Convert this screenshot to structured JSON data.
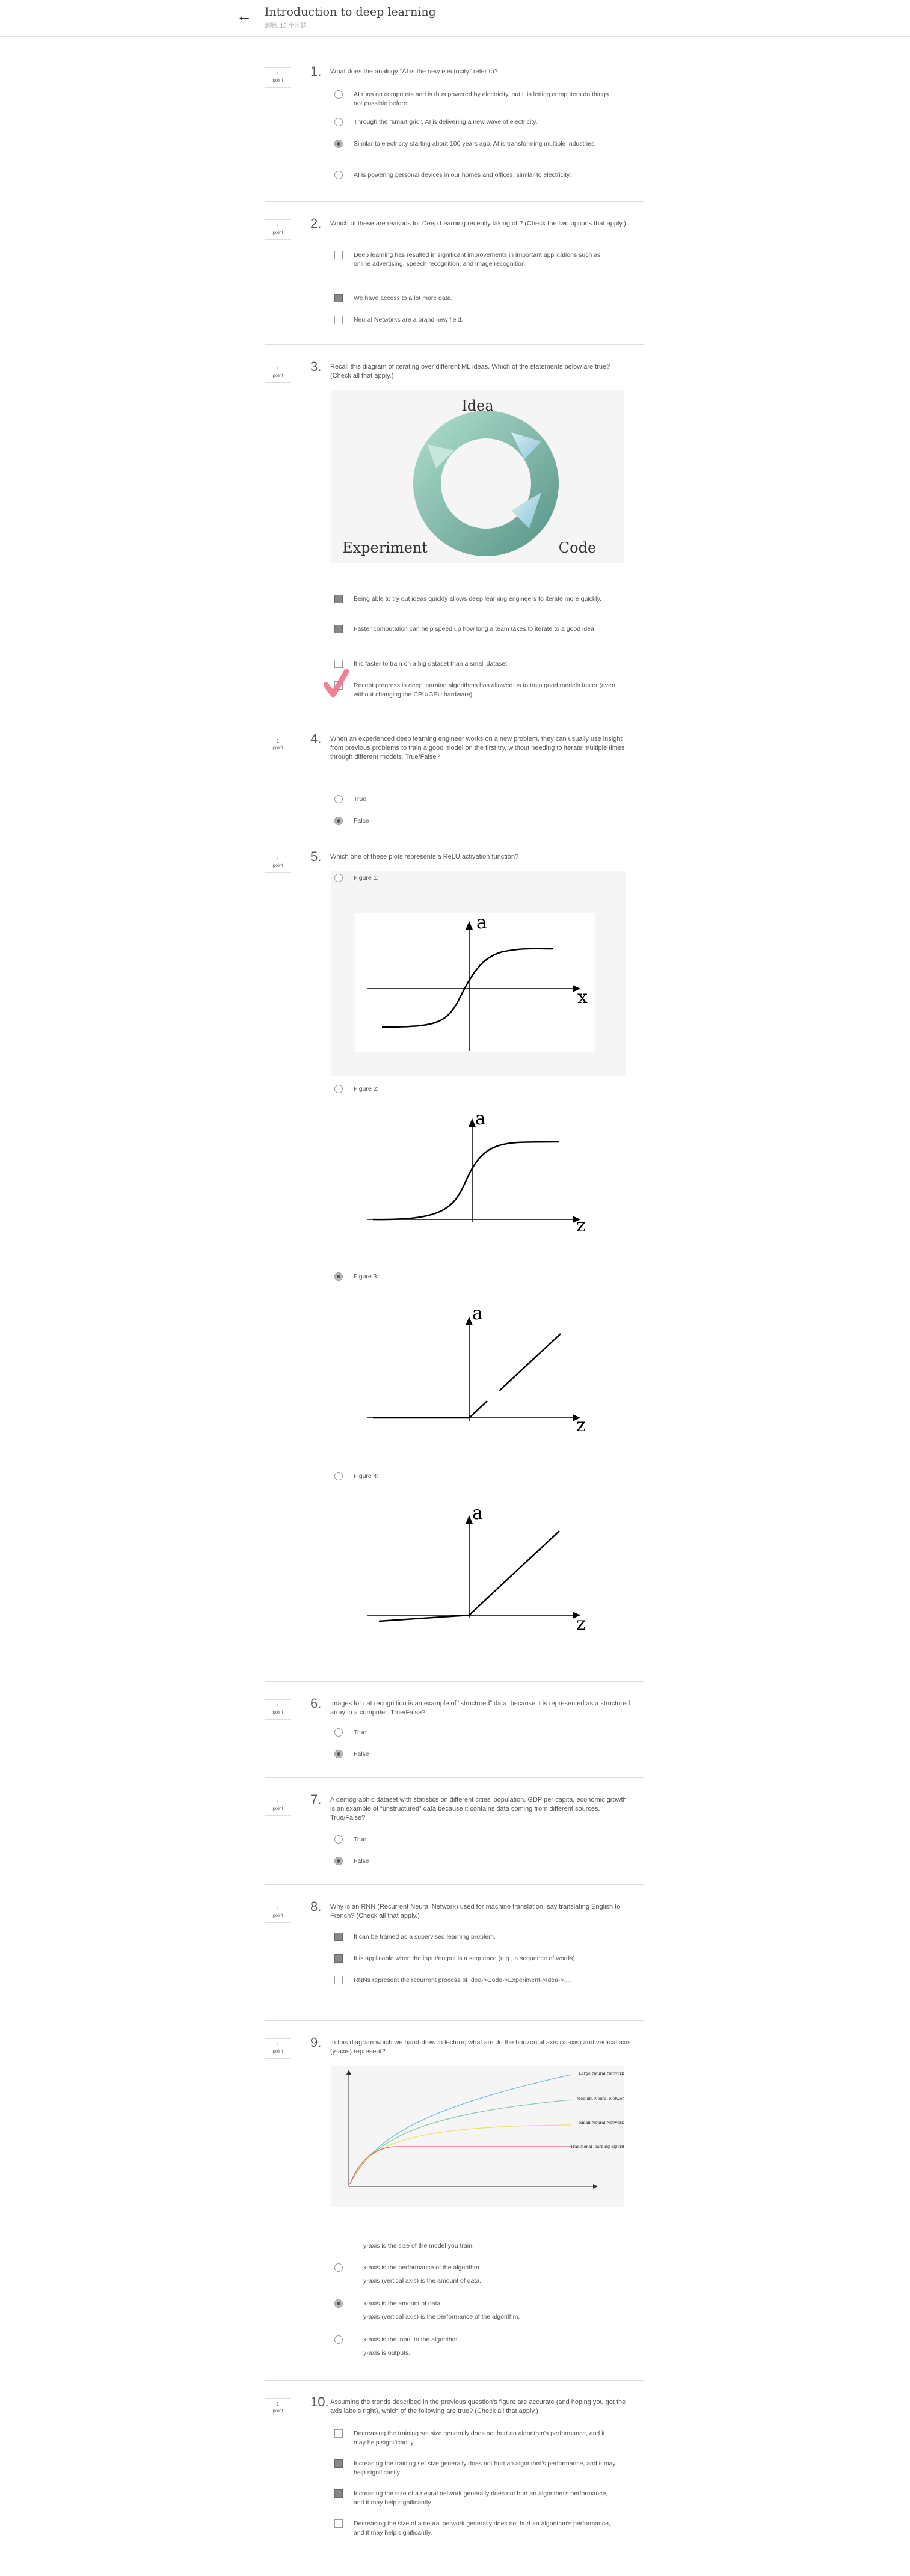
{
  "header": {
    "back_label": "←",
    "title": "Introduction to deep learning",
    "subtitle": "测验, 10 个问题"
  },
  "points_label": [
    "1",
    "point"
  ],
  "questions": [
    {
      "num": "1.",
      "text": "What does the analogy “AI is the new electricity” refer to?",
      "options": [
        "AI runs on computers and is thus powered by electricity, but it is letting computers do things not possible before.",
        "Through the “smart grid”, AI is delivering a new wave of electricity.",
        "Similar to electricity starting about 100 years ago, AI is transforming multiple industries.",
        "AI is powering personal devices in our homes and offices, similar to electricity."
      ]
    },
    {
      "num": "2.",
      "text": "Which of these are reasons for Deep Learning recently taking off? (Check the two options that apply.)",
      "options": [
        "Deep learning has resulted in significant improvements in important applications such as online advertising, speech recognition, and image recognition.",
        "We have access to a lot more data.",
        "Neural Networks are a brand new field."
      ]
    },
    {
      "num": "3.",
      "text": "Recall this diagram of iterating over different ML ideas. Which of the statements below are true? (Check all that apply.)",
      "diagram": {
        "idea": "Idea",
        "experiment": "Experiment",
        "code": "Code"
      },
      "options": [
        "Being able to try out ideas quickly allows deep learning engineers to iterate more quickly.",
        "Faster computation can help speed up how long a team takes to iterate to a good idea.",
        "It is faster to train on a big dataset than a small dataset.",
        "Recent progress in deep learning algorithms has allowed us to train good models faster (even without changing the CPU/GPU hardware)."
      ]
    },
    {
      "num": "4.",
      "text": "When an experienced deep learning engineer works on a new problem, they can usually use insight from previous problems to train a good model on the first try, without needing to iterate multiple times through different models. True/False?",
      "options": [
        "True",
        "False"
      ]
    },
    {
      "num": "5.",
      "text": "Which one of these plots represents a ReLU activation function?",
      "options": [
        "Figure 1:",
        "Figure 2:",
        "Figure 3:",
        "Figure 4:"
      ],
      "axis": {
        "a": "a",
        "x": "x",
        "z": "z"
      }
    },
    {
      "num": "6.",
      "text": "Images for cat recognition is an example of “structured” data, because it is represented as a structured array in a computer. True/False?",
      "options": [
        "True",
        "False"
      ]
    },
    {
      "num": "7.",
      "text": "A demographic dataset with statistics on different cities' population, GDP per capita, economic growth is an example of “unstructured” data because it contains data coming from different sources. True/False?",
      "options": [
        "True",
        "False"
      ]
    },
    {
      "num": "8.",
      "text": "Why is an RNN (Recurrent Neural Network) used for machine translation, say translating English to French? (Check all that apply.)",
      "options": [
        "It can be trained as a supervised learning problem.",
        "It is applicable when the input/output is a sequence (e.g., a sequence of words).",
        "RNNs represent the recurrent process of Idea->Code->Experiment->Idea->...."
      ]
    },
    {
      "num": "9.",
      "text": "In this diagram which we hand-drew in lecture, what are do the horizontal axis (x-axis) and vertical axis (y-axis) represent?",
      "chart_labels": [
        "Large Neural Network",
        "Medium Neural Network",
        "Small Neural Network",
        "Traditional learning algorithms"
      ],
      "options": [
        [
          "y-axis is the size of the model you train."
        ],
        [
          "x-axis is the performance of the algorithm",
          "y-axis (vertical axis) is the amount of data."
        ],
        [
          "x-axis is the amount of data",
          "y-axis (vertical axis) is the performance of the algorithm."
        ],
        [
          "x-axis is the input to the algorithm",
          "y-axis is outputs."
        ]
      ]
    },
    {
      "num": "10.",
      "text": "Assuming the trends described in the previous question's figure are accurate (and hoping you got the axis labels right), which of the following are true? (Check all that apply.)",
      "options": [
        "Decreasing the training set size generally does not hurt an algorithm's performance, and it may help significantly.",
        "Increasing the training set size generally does not hurt an algorithm's performance, and it may help significantly.",
        "Increasing the size of a neural network generally does not hurt an algorithm's performance, and it may help significantly.",
        "Decreasing the size of a neural network generally does not hurt an algorithm's performance, and it may help significantly."
      ]
    }
  ],
  "colors": {
    "accent": "#f06a85",
    "selected": "#888888",
    "divider": "#dddddd"
  }
}
